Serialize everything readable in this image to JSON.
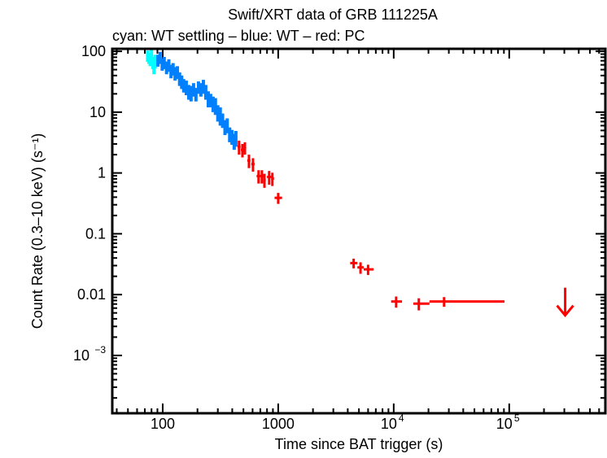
{
  "chart_data": {
    "type": "scatter",
    "title": "Swift/XRT data of GRB 111225A",
    "subtitle": "cyan: WT settling – blue: WT – red: PC",
    "xlabel": "Time since BAT trigger (s)",
    "ylabel": "Count Rate (0.3–10 keV) (s⁻¹)",
    "xscale": "log",
    "yscale": "log",
    "xlim": [
      36.6,
      680000
    ],
    "ylim": [
      0.000112,
      110
    ],
    "grid": false,
    "x_ticks": [
      {
        "value": 100,
        "label": "100"
      },
      {
        "value": 1000,
        "label": "1000"
      },
      {
        "value": 10000,
        "label": "10",
        "exp": "4"
      },
      {
        "value": 100000,
        "label": "10",
        "exp": "5"
      }
    ],
    "y_ticks": [
      {
        "value": 100,
        "label": "100"
      },
      {
        "value": 10,
        "label": "10"
      },
      {
        "value": 1,
        "label": "1"
      },
      {
        "value": 0.1,
        "label": "0.1"
      },
      {
        "value": 0.01,
        "label": "0.01"
      },
      {
        "value": 0.001,
        "label": "10",
        "exp": "−3"
      }
    ],
    "series": [
      {
        "name": "WT settling",
        "color": "#00ffff",
        "points": [
          [
            74,
            1.2,
            85,
            18
          ],
          [
            76,
            1.2,
            78,
            16
          ],
          [
            78,
            1.2,
            72,
            15
          ],
          [
            80,
            1.2,
            88,
            20
          ],
          [
            82,
            1.2,
            66,
            15
          ],
          [
            84,
            1.2,
            58,
            16
          ],
          [
            86,
            1.2,
            70,
            18
          ]
        ]
      },
      {
        "name": "WT",
        "color": "#0080ff",
        "points": [
          [
            91,
            2,
            72,
            16
          ],
          [
            95,
            2,
            80,
            18
          ],
          [
            99,
            2,
            62,
            14
          ],
          [
            103,
            2,
            66,
            15
          ],
          [
            108,
            2,
            55,
            13
          ],
          [
            113,
            2,
            60,
            14
          ],
          [
            118,
            2,
            48,
            12
          ],
          [
            123,
            2,
            52,
            12
          ],
          [
            128,
            2,
            44,
            11
          ],
          [
            134,
            2,
            46,
            11
          ],
          [
            140,
            2,
            36,
            9
          ],
          [
            146,
            3,
            32,
            8
          ],
          [
            152,
            3,
            28,
            7
          ],
          [
            160,
            3,
            26,
            7
          ],
          [
            168,
            3,
            22,
            6
          ],
          [
            176,
            3,
            21,
            6
          ],
          [
            185,
            3,
            24,
            6
          ],
          [
            194,
            3,
            20,
            5
          ],
          [
            204,
            3,
            26,
            6
          ],
          [
            214,
            3,
            24,
            6
          ],
          [
            225,
            3,
            27,
            7
          ],
          [
            236,
            4,
            22,
            6
          ],
          [
            248,
            4,
            17,
            5
          ],
          [
            260,
            4,
            16,
            4
          ],
          [
            273,
            4,
            14,
            4
          ],
          [
            286,
            4,
            13,
            4
          ],
          [
            300,
            4,
            10,
            3
          ],
          [
            315,
            4,
            9,
            3
          ],
          [
            330,
            5,
            7.5,
            2
          ],
          [
            346,
            5,
            5.8,
            1.6
          ],
          [
            362,
            5,
            6.2,
            1.7
          ],
          [
            380,
            5,
            4.4,
            1.2
          ],
          [
            398,
            5,
            4.0,
            1.1
          ],
          [
            416,
            5,
            3.4,
            1.0
          ],
          [
            430,
            5,
            3.8,
            1.1
          ]
        ]
      },
      {
        "name": "PC",
        "color": "#ff0000",
        "points": [
          [
            458,
            [
              445,
              472
            ],
            2.7,
            0.7
          ],
          [
            490,
            [
              475,
              505
            ],
            2.4,
            0.6
          ],
          [
            515,
            [
              505,
              528
            ],
            2.6,
            0.6
          ],
          [
            558,
            [
              540,
              575
            ],
            1.6,
            0.4
          ],
          [
            605,
            [
              585,
              625
            ],
            1.4,
            0.35
          ],
          [
            676,
            [
              650,
              700
            ],
            0.89,
            0.22
          ],
          [
            722,
            [
              700,
              745
            ],
            0.89,
            0.22
          ],
          [
            760,
            [
              745,
              780
            ],
            0.77,
            0.2
          ],
          [
            835,
            [
              800,
              870
            ],
            0.86,
            0.22
          ],
          [
            890,
            [
              870,
              920
            ],
            0.81,
            0.2
          ],
          [
            1000,
            [
              930,
              1080
            ],
            0.39,
            0.08
          ],
          [
            4500,
            [
              4200,
              4850
            ],
            0.033,
            0.006
          ],
          [
            5160,
            [
              4850,
              5500
            ],
            0.028,
            0.006
          ],
          [
            6000,
            [
              5500,
              6700
            ],
            0.026,
            0.005
          ],
          [
            10500,
            [
              9500,
              11800
            ],
            0.0077,
            0.0016
          ],
          [
            16500,
            [
              14800,
              20400
            ],
            0.0071,
            0.0016
          ],
          [
            27300,
            [
              20400,
              91000
            ],
            0.0077,
            0.0014
          ]
        ]
      }
    ],
    "upper_limits": [
      {
        "x": 305000,
        "y": 0.013,
        "color": "#ff0000"
      }
    ]
  }
}
